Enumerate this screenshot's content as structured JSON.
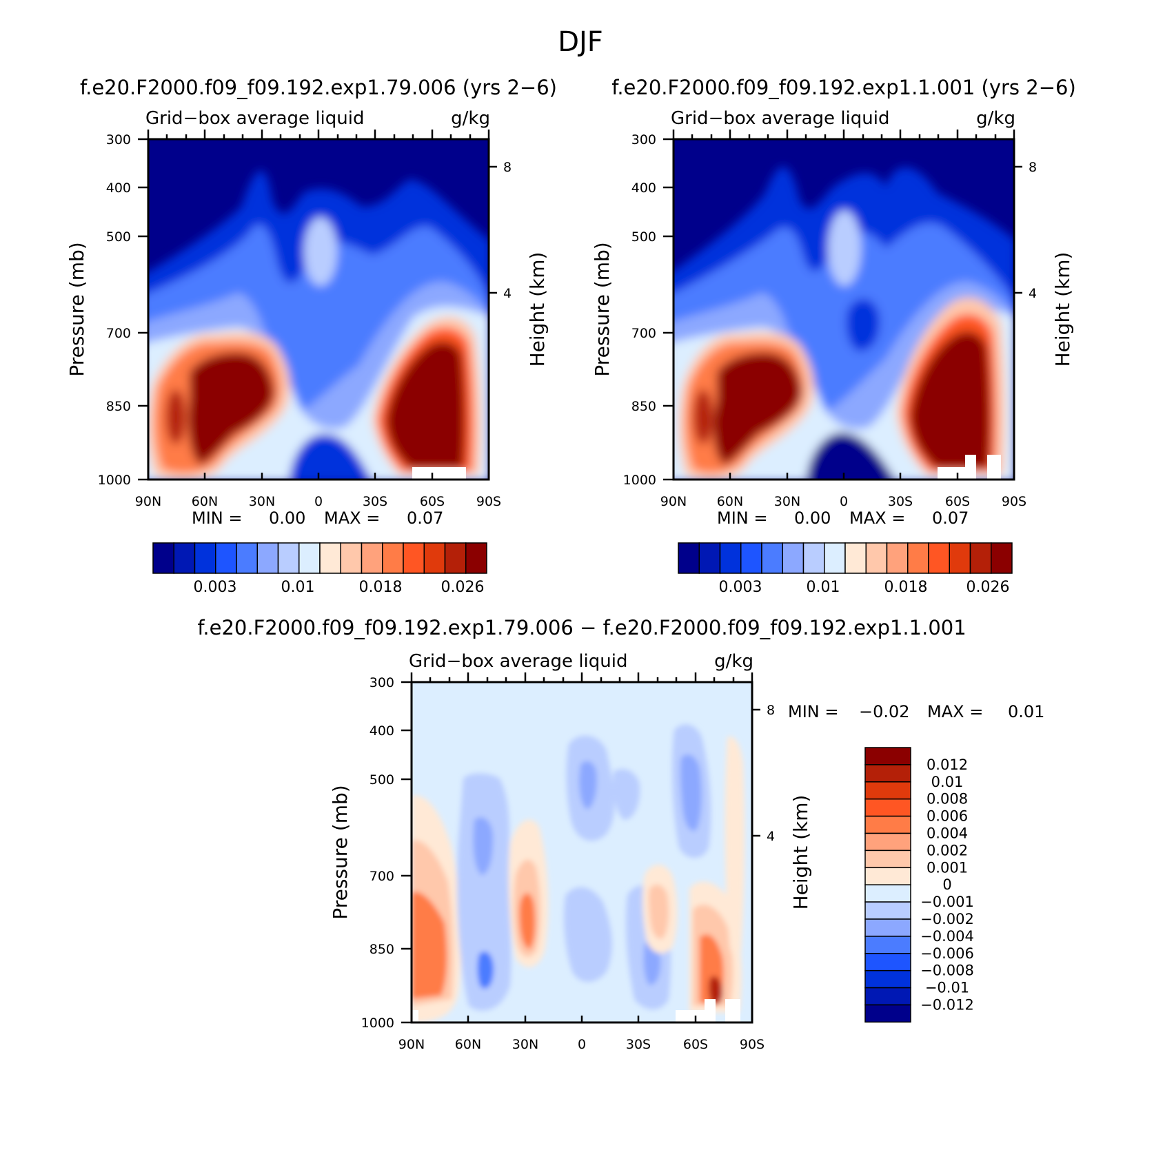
{
  "title": "DJF",
  "chart_data": [
    {
      "id": "panel1",
      "type": "heatmap",
      "run_title": "f.e20.F2000.f09_f09.192.exp1.79.006 (yrs 2−6)",
      "variable": "Grid−box average liquid",
      "units": "g/kg",
      "ylabel": "Pressure (mb)",
      "ylabel_right": "Height (km)",
      "x_ticks": [
        "90N",
        "60N",
        "30N",
        "0",
        "30S",
        "60S",
        "90S"
      ],
      "y_ticks": [
        "300",
        "400",
        "500",
        "700",
        "850",
        "1000"
      ],
      "right_ticks": [
        "8",
        "4"
      ],
      "min_label": "MIN =",
      "min_value": "0.00",
      "max_label": "MAX =",
      "max_value": "0.07",
      "colorbar_labels": [
        "0.003",
        "0.01",
        "0.018",
        "0.026"
      ]
    },
    {
      "id": "panel2",
      "type": "heatmap",
      "run_title": "f.e20.F2000.f09_f09.192.exp1.1.001 (yrs 2−6)",
      "variable": "Grid−box average liquid",
      "units": "g/kg",
      "ylabel": "Pressure (mb)",
      "ylabel_right": "Height (km)",
      "x_ticks": [
        "90N",
        "60N",
        "30N",
        "0",
        "30S",
        "60S",
        "90S"
      ],
      "y_ticks": [
        "300",
        "400",
        "500",
        "700",
        "850",
        "1000"
      ],
      "right_ticks": [
        "8",
        "4"
      ],
      "min_label": "MIN =",
      "min_value": "0.00",
      "max_label": "MAX =",
      "max_value": "0.07",
      "colorbar_labels": [
        "0.003",
        "0.01",
        "0.018",
        "0.026"
      ]
    },
    {
      "id": "panel3",
      "type": "heatmap",
      "run_title": "f.e20.F2000.f09_f09.192.exp1.79.006 − f.e20.F2000.f09_f09.192.exp1.1.001",
      "variable": "Grid−box average liquid",
      "units": "g/kg",
      "ylabel": "Pressure (mb)",
      "ylabel_right": "Height (km)",
      "x_ticks": [
        "90N",
        "60N",
        "30N",
        "0",
        "30S",
        "60S",
        "90S"
      ],
      "y_ticks": [
        "300",
        "400",
        "500",
        "700",
        "850",
        "1000"
      ],
      "right_ticks": [
        "8",
        "4"
      ],
      "min_label": "MIN =",
      "min_value": "−0.02",
      "max_label": "MAX =",
      "max_value": "0.01",
      "colorbar_labels": [
        "0.012",
        "0.01",
        "0.008",
        "0.006",
        "0.004",
        "0.002",
        "0.001",
        "0",
        "−0.001",
        "−0.002",
        "−0.004",
        "−0.006",
        "−0.008",
        "−0.01",
        "−0.012"
      ]
    }
  ],
  "palettes": {
    "sequential": [
      "#00008b",
      "#0018b4",
      "#0032dc",
      "#1e55ff",
      "#4b7cff",
      "#8ca8ff",
      "#b9cdff",
      "#dceeff",
      "#ffe9d6",
      "#ffc8ab",
      "#ffa27c",
      "#ff7c47",
      "#ff5623",
      "#e03a0c",
      "#b42008",
      "#8b0000"
    ],
    "diverging": [
      "#8b0000",
      "#b42008",
      "#e03a0c",
      "#ff5623",
      "#ff7c47",
      "#ffa27c",
      "#ffc8ab",
      "#ffe9d6",
      "#dceeff",
      "#b9cdff",
      "#8ca8ff",
      "#4b7cff",
      "#1e55ff",
      "#0032dc",
      "#0018b4",
      "#00008b"
    ]
  }
}
